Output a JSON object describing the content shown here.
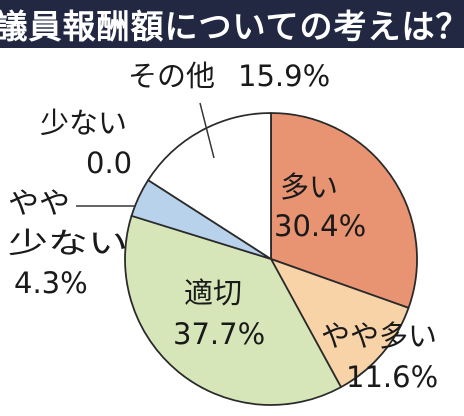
{
  "title": "議員報酬額についての考えは？",
  "chart_data": {
    "type": "pie",
    "title": "議員報酬額についての考えは？",
    "slices": [
      {
        "label": "多い",
        "display_value": "30.4%",
        "value": 30.4,
        "color": "#e89472"
      },
      {
        "label": "やや多い",
        "display_value": "11.6%",
        "value": 11.6,
        "color": "#f8d3a8"
      },
      {
        "label": "適切",
        "display_value": "37.7%",
        "value": 37.7,
        "color": "#d7e6b9"
      },
      {
        "label": "やや少ない",
        "display_value": "4.3%",
        "value": 4.3,
        "color": "#b9d2ec"
      },
      {
        "label": "少ない",
        "display_value": "0.0",
        "value": 0.0,
        "color": "#ffffff"
      },
      {
        "label": "その他",
        "display_value": "15.9%",
        "value": 15.9,
        "color": "#ffffff"
      }
    ],
    "start_direction": "12 o'clock",
    "direction": "clockwise",
    "legend": "none"
  }
}
